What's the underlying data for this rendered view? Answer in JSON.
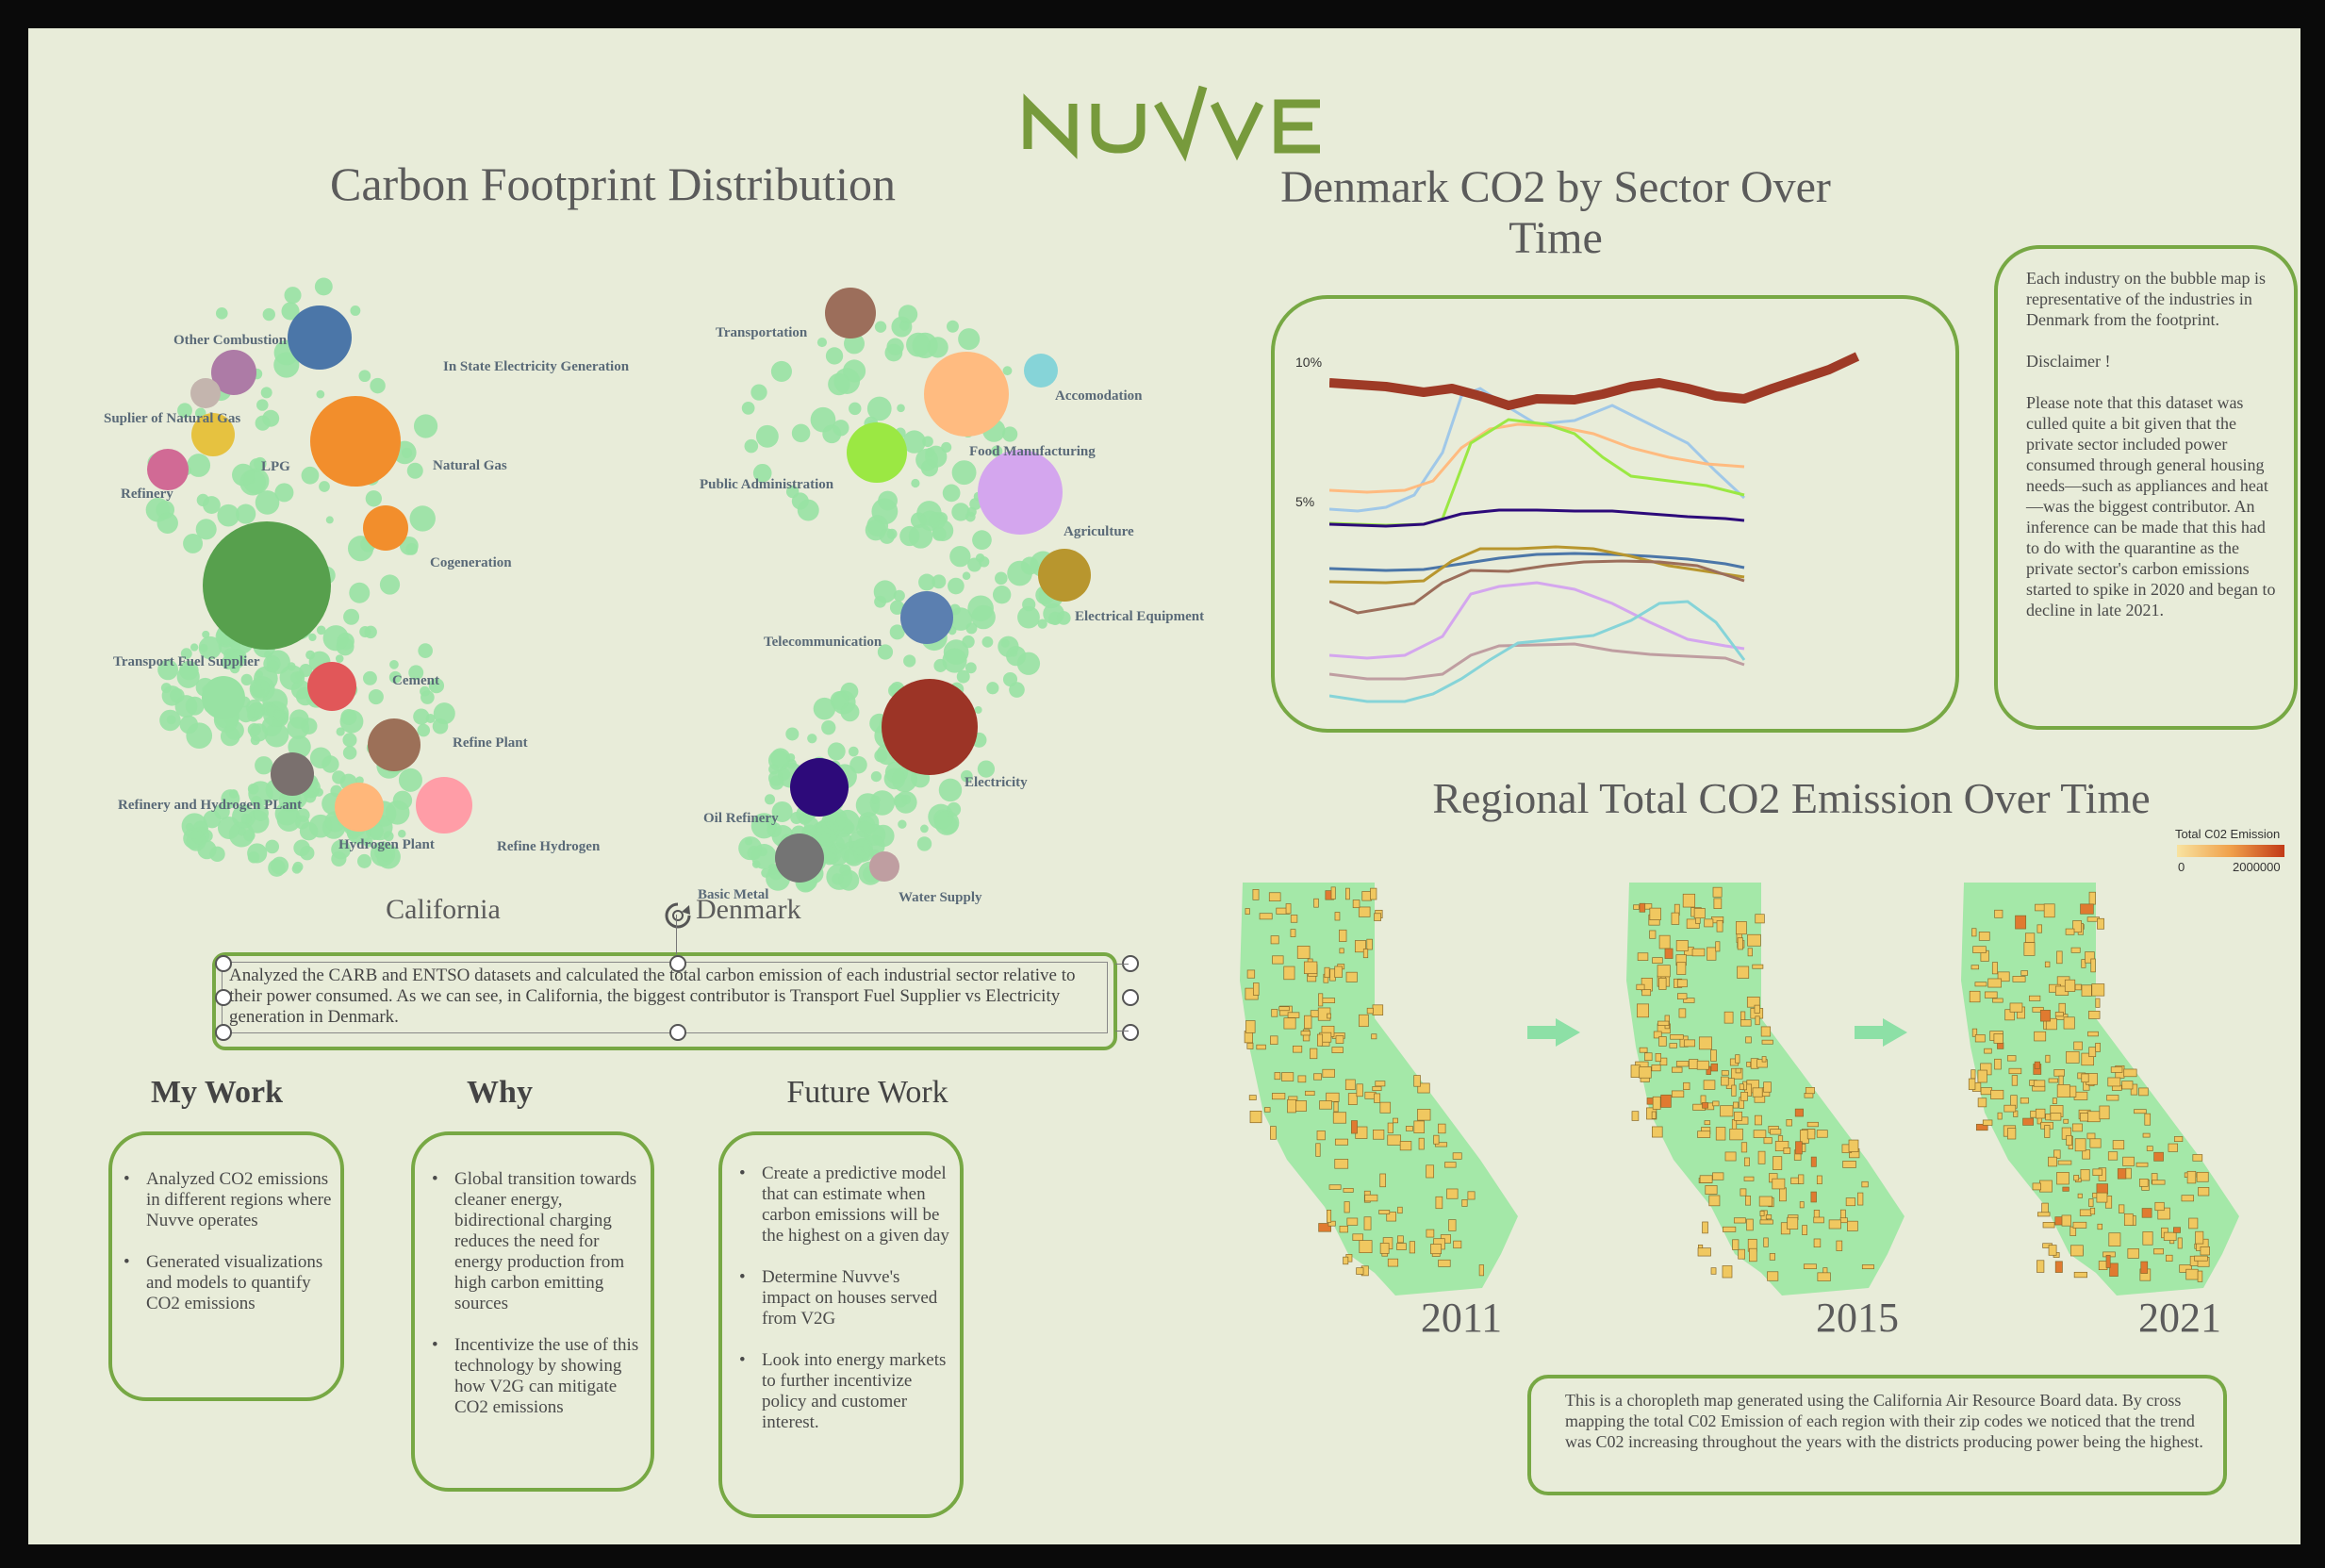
{
  "logo_text": "NUVVE",
  "carbon": {
    "title": "Carbon Footprint Distribution",
    "california_caption": "California",
    "denmark_caption": "Denmark",
    "description": "Analyzed the CARB and ENTSO datasets and calculated the total carbon emission of each industrial sector relative to their power consumed. As we can see, in California, the biggest contributor is Transport Fuel Supplier vs Electricity generation in Denmark.",
    "california_labels": [
      "Other Combustion",
      "In State Electricity Generation",
      "Suplier of Natural Gas",
      "LPG",
      "Natural Gas",
      "Refinery",
      "Cogeneration",
      "Transport Fuel Supplier",
      "Cement",
      "Refine Plant",
      "Refinery and Hydrogen PLant",
      "Hydrogen Plant",
      "Refine Hydrogen"
    ],
    "denmark_labels": [
      "Transportation",
      "Accomodation",
      "Food Manufacturing",
      "Public Administration",
      "Agriculture",
      "Electrical Equipment",
      "Telecommunication",
      "Electricity",
      "Oil Refinery",
      "Basic Metal",
      "Water Supply"
    ]
  },
  "denmark_chart": {
    "title_line1": "Denmark CO2 by Sector Over",
    "title_line2": "Time",
    "y_ticks": [
      "10%",
      "5%"
    ],
    "colors": {
      "electricity": "#9e3a26",
      "accent": "#77a844"
    }
  },
  "note": {
    "p1": "Each industry on the bubble map is representative of the industries in Denmark  from the footprint.",
    "p2": "Disclaimer !",
    "p3": "Please note that this dataset was culled quite a bit given that the private sector included power consumed through general housing needs—such as appliances and heat—was the biggest contributor. An inference can be made that this had to do with the quarantine as the private sector's carbon emissions started to spike in 2020 and began to decline in late 2021."
  },
  "regional": {
    "title": "Regional Total CO2 Emission Over Time",
    "legend_title": "Total C02 Emission",
    "legend_min": "0",
    "legend_max": "2000000",
    "years": [
      "2011",
      "2015",
      "2021"
    ],
    "description": "This is a choropleth map generated using the California Air Resource Board data. By cross mapping  the total C02 Emission of each region with their zip codes we noticed that the trend was C02 increasing throughout the years with the districts producing power being the highest."
  },
  "my_work": {
    "heading": "My Work",
    "items": [
      "Analyzed CO2 emissions in different regions where Nuvve operates",
      "Generated visualizations and models to quantify CO2 emissions"
    ]
  },
  "why": {
    "heading": "Why",
    "items": [
      "Global transition towards cleaner energy, bidirectional charging reduces the need for energy production from high carbon emitting sources",
      "Incentivize the use of this technology by showing how V2G can mitigate CO2 emissions"
    ]
  },
  "future_work": {
    "heading": "Future Work",
    "items": [
      "Create a predictive model that can estimate when carbon emissions will be the highest on a given day",
      "Determine Nuvve's impact on houses served from V2G",
      "Look into energy markets to further incentivize policy and customer interest."
    ]
  }
}
